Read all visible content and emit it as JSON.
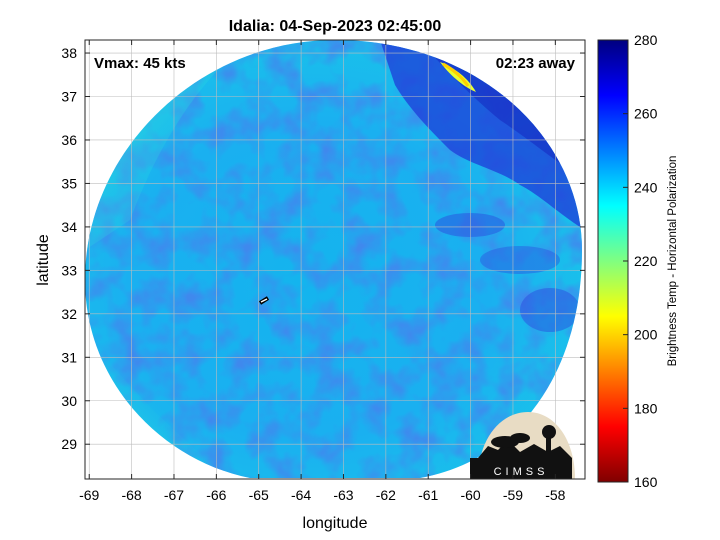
{
  "chart_data": {
    "type": "heatmap",
    "title": "Idalia: 04-Sep-2023 02:45:00",
    "xlabel": "longitude",
    "ylabel": "latitude",
    "xlim": [
      -69.1,
      -57.3
    ],
    "ylim": [
      28.2,
      38.3
    ],
    "xticks": [
      -69,
      -68,
      -67,
      -66,
      -65,
      -64,
      -63,
      -62,
      -61,
      -60,
      -59,
      -58
    ],
    "yticks": [
      29,
      30,
      31,
      32,
      33,
      34,
      35,
      36,
      37,
      38
    ],
    "grid": true,
    "annotations": {
      "top_left": "Vmax: 45 kts",
      "top_right": "02:23 away"
    },
    "colorbar": {
      "label": "Brightness Temp - Horizontal Polarization",
      "range": [
        160,
        280
      ],
      "ticks": [
        160,
        180,
        200,
        220,
        240,
        260,
        280
      ],
      "colormap": "jet"
    },
    "swath": {
      "center": [
        -63.5,
        33.1
      ],
      "typical_value": 240,
      "cold_region_value": 265,
      "warm_edge_value": 232,
      "min_value_near_edge": 205
    },
    "logo": {
      "text": "CIMSS"
    }
  }
}
